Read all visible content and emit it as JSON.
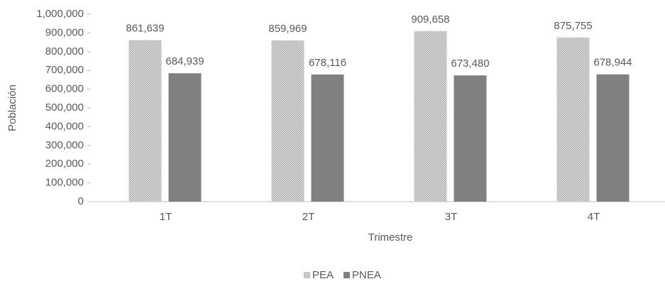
{
  "chart_data": {
    "type": "bar",
    "x_label": "Trimestre",
    "y_label": "Población",
    "categories": [
      "1T",
      "2T",
      "3T",
      "4T"
    ],
    "series": [
      {
        "name": "PEA",
        "color": "#a6a6a6",
        "pattern": "dots",
        "values": [
          861639,
          859969,
          909658,
          875755
        ],
        "value_labels": [
          "861,639",
          "859,969",
          "909,658",
          "875,755"
        ]
      },
      {
        "name": "PNEA",
        "color": "#808080",
        "values": [
          684939,
          678116,
          673480,
          678944
        ],
        "value_labels": [
          "684,939",
          "678,116",
          "673,480",
          "678,944"
        ]
      }
    ],
    "ylim": [
      0,
      1000000
    ],
    "yticks": [
      0,
      {
        "value": 100000,
        "label": "100,000"
      },
      {
        "value": 200000,
        "label": "200,000"
      },
      {
        "value": 300000,
        "label": "300,000"
      },
      {
        "value": 400000,
        "label": "400,000"
      },
      {
        "value": 500000,
        "label": "500,000"
      },
      {
        "value": 600000,
        "label": "600,000"
      },
      {
        "value": 700000,
        "label": "700,000"
      },
      {
        "value": 800000,
        "label": "800,000"
      },
      {
        "value": 900000,
        "label": "900,000"
      },
      {
        "value": 1000000,
        "label": "1,000,000"
      }
    ],
    "grid": false,
    "legend": "bottom"
  }
}
